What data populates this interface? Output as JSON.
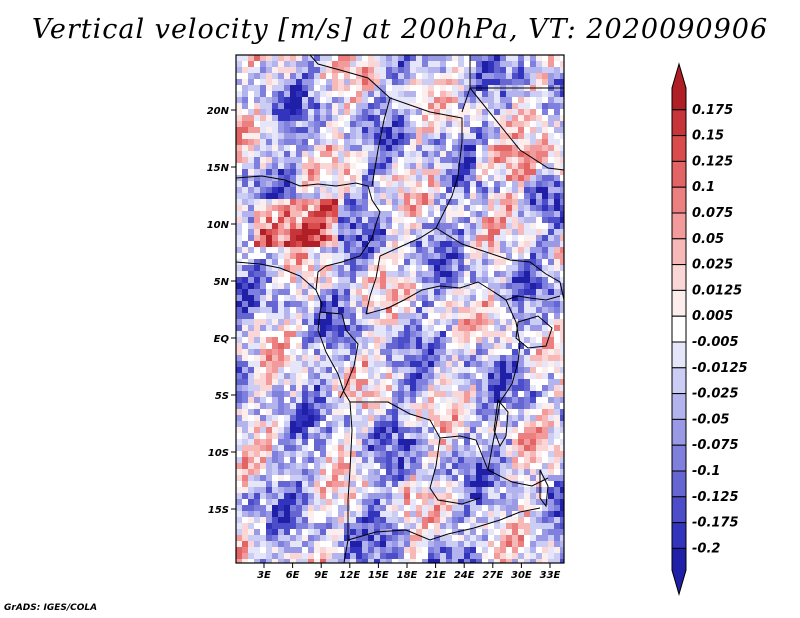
{
  "title": "Vertical velocity [m/s] at 200hPa, VT: 2020090906",
  "credit": "GrADS: IGES/COLA",
  "map": {
    "lat_ticks": [
      "20N",
      "15N",
      "10N",
      "5N",
      "EQ",
      "5S",
      "10S",
      "15S"
    ],
    "lon_ticks": [
      "3E",
      "6E",
      "9E",
      "12E",
      "15E",
      "18E",
      "21E",
      "24E",
      "27E",
      "30E",
      "33E"
    ]
  },
  "colorbar": {
    "labels": [
      "0.175",
      "0.15",
      "0.125",
      "0.1",
      "0.075",
      "0.05",
      "0.025",
      "0.0125",
      "0.005",
      "-0.005",
      "-0.0125",
      "-0.025",
      "-0.05",
      "-0.075",
      "-0.1",
      "-0.125",
      "-0.175",
      "-0.2"
    ],
    "colors": [
      "#b01e26",
      "#c7343a",
      "#d94b4d",
      "#e36464",
      "#ec7f7f",
      "#f39b9b",
      "#f7b8b8",
      "#fad6d6",
      "#fdeeee",
      "#ffffff",
      "#e6e6fb",
      "#cccdf5",
      "#b3b3ee",
      "#9999e6",
      "#7f80dd",
      "#6666d3",
      "#4c4dc8",
      "#3334bd",
      "#1f1fa8"
    ]
  },
  "colors": {
    "ascent": "#d94b4d",
    "descent": "#6666d3",
    "outline": "#000000"
  }
}
